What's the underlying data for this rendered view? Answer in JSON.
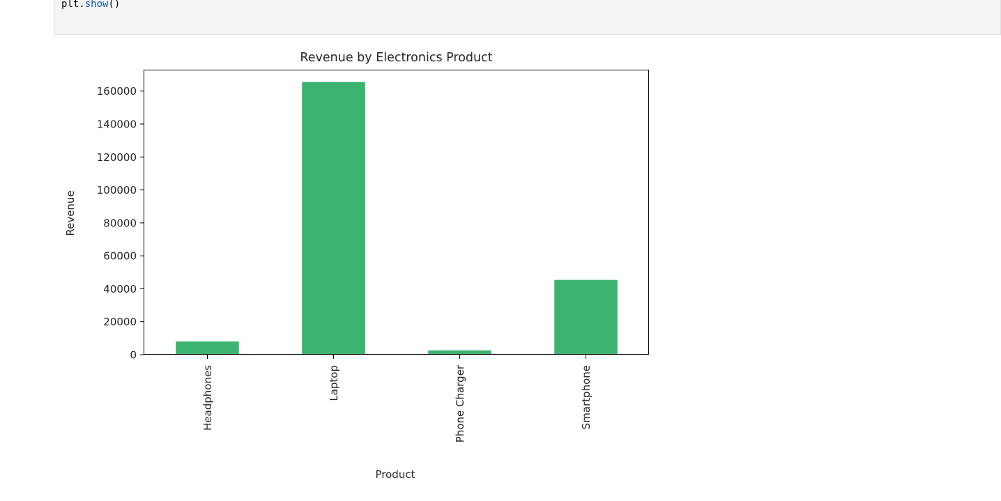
{
  "code_cell": {
    "obj": "plt",
    "dot": ".",
    "method": "show",
    "parens": "()"
  },
  "chart_data": {
    "type": "bar",
    "title": "Revenue by Electronics Product",
    "xlabel": "Product",
    "ylabel": "Revenue",
    "categories": [
      "Headphones",
      "Laptop",
      "Phone Charger",
      "Smartphone"
    ],
    "values": [
      8000,
      165500,
      2600,
      45400
    ],
    "ylim": [
      0,
      173000
    ],
    "yticks": [
      0,
      20000,
      40000,
      60000,
      80000,
      100000,
      120000,
      140000,
      160000
    ],
    "ytick_labels": [
      "0",
      "20000",
      "40000",
      "60000",
      "80000",
      "100000",
      "120000",
      "140000",
      "160000"
    ],
    "bar_color": "#3cb371",
    "grid": false,
    "legend": "none"
  }
}
